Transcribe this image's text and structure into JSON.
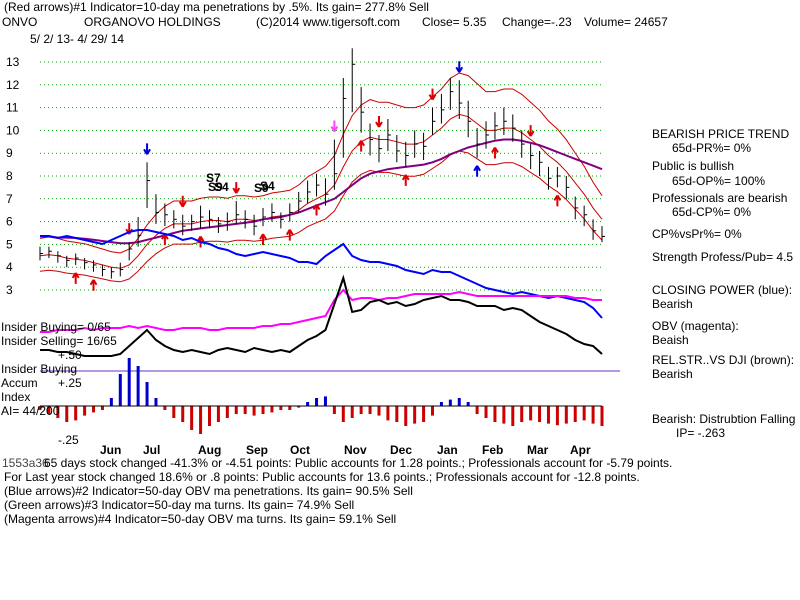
{
  "header": {
    "line1": "(Red arrows)#1 Indicator=10-day ma penetrations by .5%.  Its gain= 277.8% Sell",
    "ticker": "ONVO",
    "company": "ORGANOVO HOLDINGS",
    "copyright": "(C)2014 www.tigersoft.com",
    "close_label": "Close=  5.35",
    "change_label": "Change=-.23",
    "volume_label": "Volume= 24657",
    "date_range": "5/ 2/ 13-  4/ 29/ 14"
  },
  "chart_data": {
    "type": "line",
    "y_ticks": [
      "13",
      "12",
      "11",
      "10",
      "9",
      "8",
      "7",
      "6",
      "5",
      "4",
      "3"
    ],
    "months": [
      "Jun",
      "Jul",
      "Aug",
      "Sep",
      "Oct",
      "Nov",
      "Dec",
      "Jan",
      "Feb",
      "Mar",
      "Apr"
    ],
    "price_close": [
      4.6,
      4.7,
      4.5,
      4.3,
      4.4,
      4.2,
      4.1,
      3.9,
      3.8,
      3.9,
      4.8,
      5.4,
      7.8,
      6.4,
      6.3,
      6.1,
      5.8,
      6.0,
      6.2,
      6.1,
      5.9,
      6.0,
      6.3,
      6.1,
      5.8,
      6.2,
      6.4,
      6.1,
      6.4,
      6.9,
      7.3,
      7.6,
      7.2,
      8.1,
      11.4,
      12.9,
      10.8,
      9.6,
      9.2,
      9.8,
      9.1,
      8.9,
      9.4,
      9.3,
      10.4,
      10.9,
      11.7,
      11.2,
      10.4,
      9.4,
      9.8,
      10.2,
      10.4,
      10.1,
      9.4,
      8.9,
      8.6,
      7.9,
      8.0,
      7.5,
      6.6,
      6.3,
      5.6,
      5.35
    ],
    "price_high": [
      4.9,
      4.9,
      4.7,
      4.5,
      4.6,
      4.4,
      4.3,
      4.1,
      4.0,
      4.2,
      5.1,
      6.2,
      8.6,
      7.2,
      6.8,
      6.5,
      6.3,
      6.3,
      6.7,
      6.5,
      6.2,
      6.4,
      6.9,
      6.5,
      6.3,
      6.6,
      6.8,
      6.4,
      6.8,
      7.3,
      7.8,
      8.1,
      7.9,
      9.6,
      12.3,
      13.6,
      11.9,
      10.3,
      9.8,
      10.5,
      9.8,
      9.5,
      10.0,
      9.9,
      11.0,
      11.6,
      12.3,
      12.2,
      11.3,
      10.1,
      10.4,
      10.8,
      11.0,
      10.7,
      10.0,
      9.4,
      9.1,
      8.4,
      8.4,
      8.0,
      7.1,
      6.7,
      6.1,
      5.8
    ],
    "price_low": [
      4.3,
      4.4,
      4.2,
      4.0,
      4.1,
      3.9,
      3.8,
      3.6,
      3.5,
      3.6,
      4.3,
      4.9,
      6.6,
      5.9,
      5.8,
      5.7,
      5.4,
      5.6,
      5.7,
      5.7,
      5.5,
      5.6,
      5.9,
      5.7,
      5.4,
      5.8,
      6.0,
      5.7,
      6.0,
      6.4,
      6.8,
      7.1,
      6.7,
      7.4,
      8.8,
      10.8,
      9.9,
      8.9,
      8.6,
      9.1,
      8.6,
      8.4,
      8.8,
      8.7,
      9.8,
      10.3,
      10.9,
      10.5,
      9.7,
      8.8,
      9.2,
      9.6,
      9.8,
      9.5,
      8.8,
      8.3,
      8.0,
      7.4,
      7.5,
      7.0,
      6.1,
      5.8,
      5.2,
      5.1
    ],
    "ma21": [
      4.5,
      4.55,
      4.5,
      4.4,
      4.35,
      4.3,
      4.2,
      4.1,
      4.0,
      3.95,
      4.1,
      4.5,
      5.0,
      5.4,
      5.7,
      5.9,
      5.9,
      5.9,
      6.0,
      6.05,
      6.05,
      6.0,
      6.1,
      6.1,
      6.05,
      6.1,
      6.2,
      6.25,
      6.3,
      6.5,
      6.8,
      7.0,
      7.2,
      7.6,
      8.4,
      9.1,
      9.5,
      9.7,
      9.6,
      9.6,
      9.5,
      9.4,
      9.4,
      9.5,
      9.8,
      10.1,
      10.5,
      10.7,
      10.6,
      10.3,
      10.0,
      10.0,
      10.1,
      10.1,
      9.9,
      9.6,
      9.3,
      8.9,
      8.6,
      8.2,
      7.7,
      7.2,
      6.6,
      6.1
    ],
    "ma50": [
      5.35,
      5.35,
      5.3,
      5.3,
      5.28,
      5.25,
      5.2,
      5.15,
      5.1,
      5.05,
      5.05,
      5.1,
      5.2,
      5.3,
      5.4,
      5.5,
      5.6,
      5.65,
      5.7,
      5.75,
      5.8,
      5.85,
      5.9,
      5.95,
      6.0,
      6.1,
      6.15,
      6.2,
      6.3,
      6.4,
      6.55,
      6.7,
      6.85,
      7.0,
      7.3,
      7.6,
      7.9,
      8.1,
      8.2,
      8.3,
      8.35,
      8.4,
      8.45,
      8.5,
      8.6,
      8.75,
      8.95,
      9.1,
      9.25,
      9.35,
      9.45,
      9.55,
      9.6,
      9.6,
      9.55,
      9.45,
      9.35,
      9.2,
      9.05,
      8.9,
      8.75,
      8.6,
      8.45,
      8.3
    ],
    "signals": {
      "red_arrows": "#1 Indicator=10-day ma penetrations by .5%.  Its gain= 277.8% Sell",
      "blue_arrows": "#2 Indicator=50-day OBV ma penetrations.  Its gain= 90.5% Sell",
      "green_arrows": "#3 Indicator=50-day ma turns.  Its gain= 74.9% Sell",
      "magenta_arrows": "#4 Indicator=50-day OBV ma turns.  Its gain= 59.1% Sell"
    },
    "signal_marks": [
      "S7",
      "S9",
      "S4",
      "S9",
      "S4"
    ],
    "colors": {
      "price": "#000000",
      "band": "#cc0000",
      "ma_purple": "#800080",
      "closing_power": "#0000ff",
      "obv": "#ff00ff",
      "relstr": "#000000",
      "accum_pos": "#0000cc",
      "accum_neg": "#cc0000",
      "grid": "#00aa00"
    }
  },
  "right_panel": {
    "trend_title": "BEARISH PRICE TREND",
    "pr_line": "65d-PR%=  0%",
    "public_title": "Public is bullish",
    "op_line": "65d-OP%= 100%",
    "prof_title": "Professionals are bearish",
    "cp_line": "65d-CP%=  0%",
    "cpvspr": "CP%vsPr%=   0%",
    "strength": "Strength Profess/Pub= 4.5",
    "closing_power_title": "CLOSING POWER (blue):",
    "closing_power_val": "Bearish",
    "obv_title": "OBV (magenta):",
    "obv_val": "Beaish",
    "relstr_title": "REL.STR..VS DJI (brown):",
    "relstr_val": "Bearish",
    "distribution": "Bearish:  Distrubtion Falling",
    "ip": "IP= -.263"
  },
  "left_panel": {
    "insider_buying": "Insider Buying= 0/65",
    "insider_selling": "Insider Selling= 16/65",
    "ind_plus50": "+.50",
    "insider_buying2": "Insider Buying",
    "accum": "Accum",
    "plus25": "+.25",
    "index": "Index",
    "ai": "AI= 44/200",
    "minus25": "-.25"
  },
  "footer": {
    "overlap": "1553a36",
    "line1": "65 days stock changed -41.3% or -4.51 points:  Public accounts for  1.28 points.;  Professionals account for -5.79 points.",
    "line2": "For Last year stock changed  18.6% or  .8 points:  Public accounts for  13.6 points.;  Professionals account for -12.8 points.",
    "line3": "(Blue arrows)#2 Indicator=50-day OBV ma penetrations.  Its gain= 90.5% Sell",
    "line4": "(Green arrows)#3 Indicator=50-day ma turns.  Its gain= 74.9% Sell",
    "line5": "(Magenta arrows)#4 Indicator=50-day OBV ma turns.  Its gain= 59.1% Sell"
  }
}
